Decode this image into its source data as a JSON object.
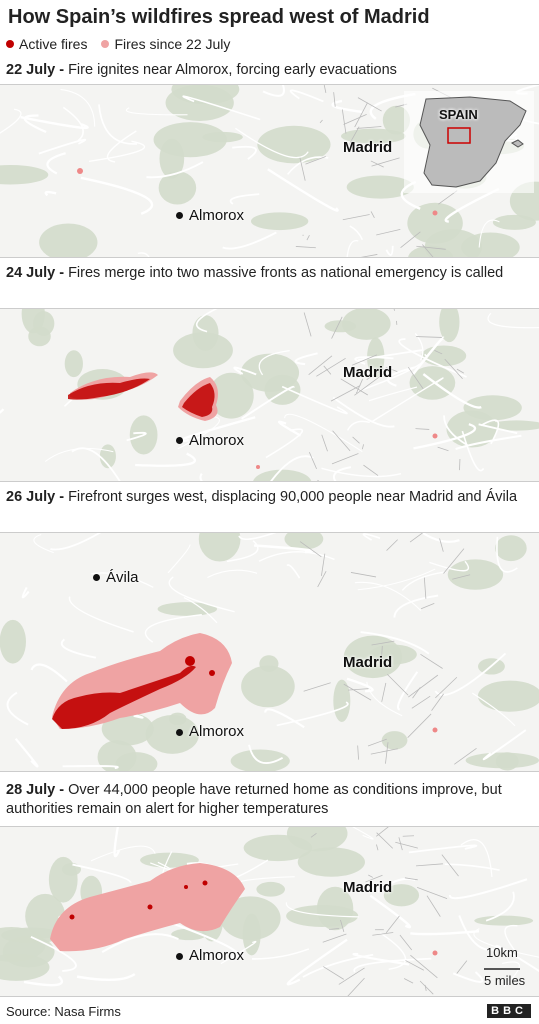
{
  "title": "How Spain’s wildfires spread west of Madrid",
  "legend": [
    {
      "label": "Active fires",
      "color": "#c00000"
    },
    {
      "label": "Fires since 22 July",
      "color": "#efa3a3"
    }
  ],
  "inset_label": "SPAIN",
  "panels": [
    {
      "date": "22 July -",
      "text": "Fire ignites near Almorox, forcing early evacuations",
      "places": [
        "Madrid",
        "Almorox"
      ]
    },
    {
      "date": "24 July -",
      "text": "Fires merge into two massive fronts as national emergency is called",
      "places": [
        "Madrid",
        "Almorox"
      ]
    },
    {
      "date": "26 July -",
      "text": "Firefront surges west, displacing 90,000 people near Madrid and Ávila",
      "places": [
        "Ávila",
        "Madrid",
        "Almorox"
      ]
    },
    {
      "date": "28 July -",
      "text": "Over 44,000 people have returned home as conditions improve, but authorities remain on alert for higher temperatures",
      "places": [
        "Madrid",
        "Almorox"
      ]
    }
  ],
  "scale": [
    "10km",
    "5 miles"
  ],
  "source": "Source: Nasa Firms",
  "logo": "BBC"
}
